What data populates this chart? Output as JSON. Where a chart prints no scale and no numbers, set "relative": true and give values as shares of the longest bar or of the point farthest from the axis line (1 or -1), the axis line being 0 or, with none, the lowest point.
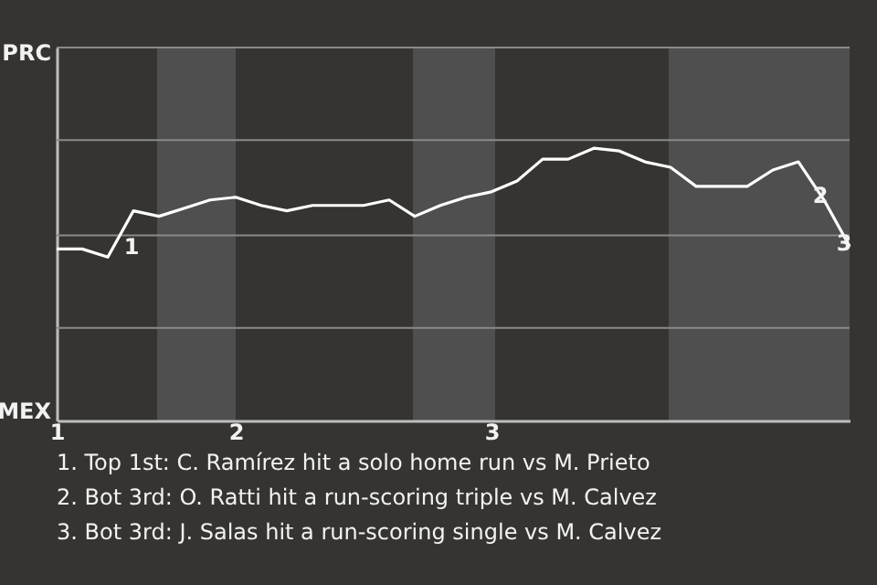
{
  "chart_data": {
    "type": "line",
    "categories": [
      "1",
      null,
      null,
      null,
      null,
      null,
      null,
      "2",
      null,
      null,
      null,
      null,
      null,
      null,
      null,
      null,
      null,
      "3",
      null,
      null,
      null,
      null,
      null,
      null,
      null,
      null,
      null,
      null,
      null,
      null,
      null,
      null
    ],
    "relative": true,
    "series": [
      {
        "color": "#ffffff",
        "values": [
          0.63,
          0.63,
          0.6,
          0.77,
          0.75,
          0.78,
          0.81,
          0.82,
          0.79,
          0.77,
          0.79,
          0.79,
          0.79,
          0.81,
          0.75,
          0.79,
          0.82,
          0.84,
          0.88,
          0.96,
          0.96,
          1,
          0.99,
          0.95,
          0.93,
          0.86,
          0.86,
          0.86,
          0.92,
          0.95,
          0.81,
          0.64
        ]
      }
    ],
    "ref_lines": [
      {
        "axis": "y",
        "value": 0.34,
        "color": "#8a8a8a"
      },
      {
        "axis": "y",
        "value": 0.68,
        "color": "#8a8a8a"
      },
      {
        "axis": "y",
        "value": 1.03,
        "color": "#8a8a8a"
      }
    ],
    "annotations": [
      "PRC",
      "MEX",
      "1",
      "2",
      "3",
      "1. Top 1st: C. Ramírez hit a solo home run vs M. Prieto",
      "2. Bot 3rd: O. Ratti hit a run-scoring triple vs M. Calvez",
      "3. Bot 3rd: J. Salas hit a run-scoring single vs M. Calvez"
    ]
  }
}
